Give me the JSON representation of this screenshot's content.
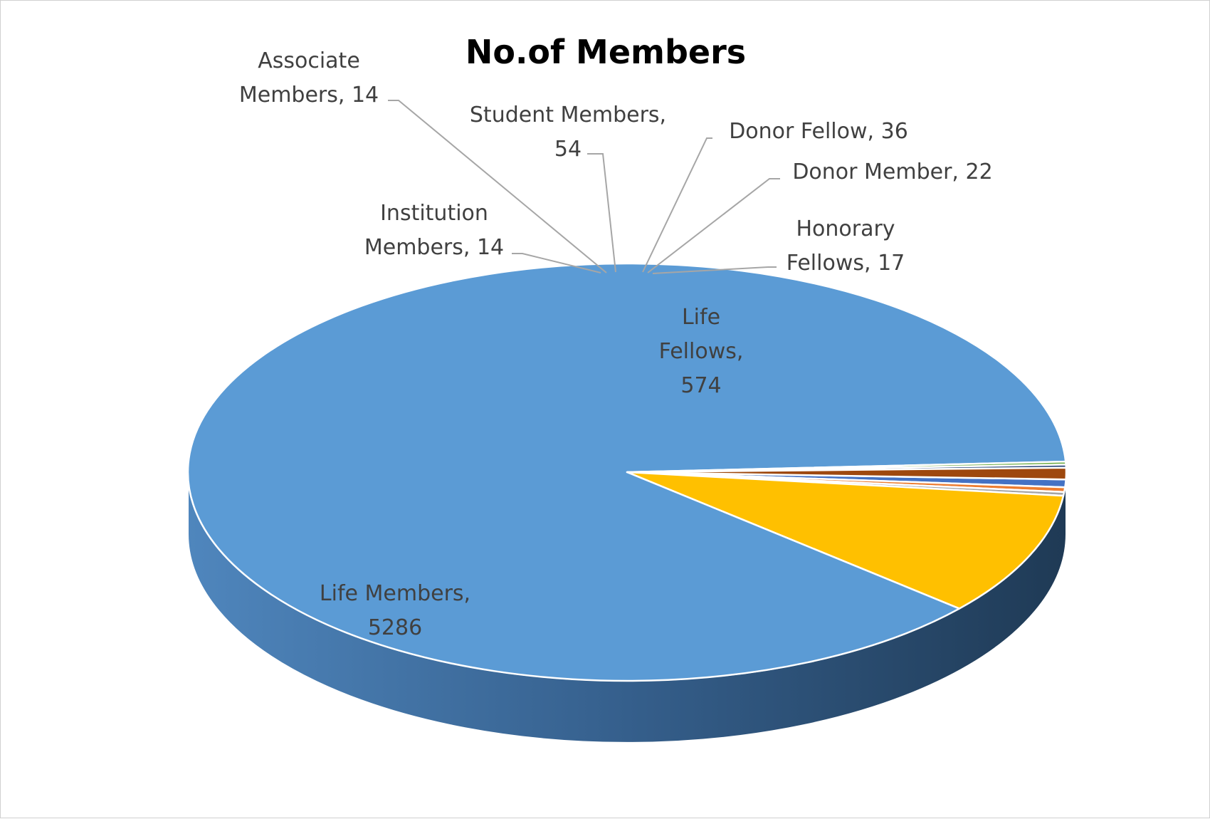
{
  "chart_data": {
    "type": "pie",
    "title": "No.of Members",
    "style": "3d",
    "start_category": "Donor Fellow",
    "direction": "clockwise",
    "slices": [
      {
        "label": "Donor Fellow",
        "value": 36,
        "color": "#4472c4",
        "text": [
          "Donor Fellow, 36"
        ]
      },
      {
        "label": "Donor Member",
        "value": 22,
        "color": "#ed7d31",
        "text": [
          "Donor Member, 22"
        ]
      },
      {
        "label": "Honorary Fellows",
        "value": 17,
        "color": "#a5a5a5",
        "text": [
          "Honorary",
          "Fellows, 17"
        ]
      },
      {
        "label": "Life Fellows",
        "value": 574,
        "color": "#ffc000",
        "text": [
          "Life",
          "Fellows,",
          "574"
        ]
      },
      {
        "label": "Life Members",
        "value": 5286,
        "color": "#5b9bd5",
        "text": [
          "Life Members,",
          "5286"
        ]
      },
      {
        "label": "Institution Members",
        "value": 14,
        "color": "#70ad47",
        "text": [
          "Institution",
          "Members, 14"
        ]
      },
      {
        "label": "Associate Members",
        "value": 14,
        "color": "#264478",
        "text": [
          "Associate",
          "Members, 14"
        ]
      },
      {
        "label": "Student Members",
        "value": 54,
        "color": "#9e480e",
        "text": [
          "Student Members,",
          "54"
        ]
      }
    ]
  }
}
